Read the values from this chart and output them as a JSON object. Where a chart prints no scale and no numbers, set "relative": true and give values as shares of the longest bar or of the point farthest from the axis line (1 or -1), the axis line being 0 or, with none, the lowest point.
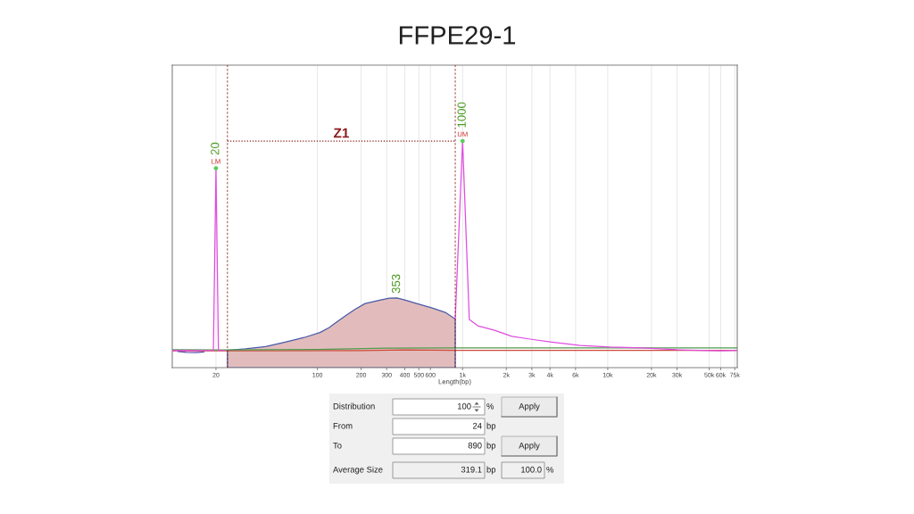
{
  "chart_data": {
    "type": "line",
    "title": "FFPE29-1",
    "xlabel": "Length(bp)",
    "relative": true,
    "log": "x",
    "xlim": [
      10,
      78000
    ],
    "xticks": [
      20,
      100,
      200,
      300,
      400,
      500,
      600,
      {
        "value": 1000,
        "label": "1k"
      },
      {
        "value": 2000,
        "label": "2k"
      },
      {
        "value": 3000,
        "label": "3k"
      },
      {
        "value": 4000,
        "label": "4k"
      },
      {
        "value": 6000,
        "label": "6k"
      },
      {
        "value": 10000,
        "label": "10k"
      },
      {
        "value": 20000,
        "label": "20k"
      },
      {
        "value": 30000,
        "label": "30k"
      },
      {
        "value": 50000,
        "label": "50k"
      },
      {
        "value": 60000,
        "label": "60k"
      },
      {
        "value": 75000,
        "label": "75k"
      }
    ],
    "grid": "x",
    "series": [
      {
        "type": "area",
        "color": "#e2bcbc",
        "x": [
          24,
          32,
          44,
          60,
          81,
          104,
          120,
          138,
          158,
          181,
          213,
          273,
          313,
          353,
          378,
          424,
          494,
          610,
          760,
          890
        ],
        "values": [
          0.076,
          0.083,
          0.093,
          0.113,
          0.133,
          0.155,
          0.176,
          0.205,
          0.231,
          0.257,
          0.283,
          0.299,
          0.307,
          0.308,
          0.303,
          0.294,
          0.281,
          0.264,
          0.244,
          0.215
        ]
      },
      {
        "type": "line",
        "color": "#d04a3a",
        "x": [
          10,
          20,
          200,
          400,
          1000,
          78000
        ],
        "values": [
          0.074,
          0.074,
          0.075,
          0.078,
          0.076,
          0.076
        ]
      },
      {
        "type": "line",
        "color": "#4f9a4f",
        "x": [
          10,
          20,
          100,
          300,
          1000,
          10000,
          78000
        ],
        "values": [
          0.079,
          0.078,
          0.08,
          0.086,
          0.087,
          0.087,
          0.087
        ]
      },
      {
        "type": "line",
        "color": "#e04ce0",
        "x": [
          10,
          12,
          15,
          19.2,
          20,
          20.8,
          23
        ],
        "values": [
          0.075,
          0.076,
          0.075,
          0.076,
          0.88,
          0.076,
          0.075
        ]
      },
      {
        "type": "line",
        "color": "#e04ce0",
        "x": [
          890,
          1000,
          1112,
          1271,
          1660,
          2180,
          2912,
          4000,
          6460,
          10370,
          17290,
          30000,
          60000,
          78000
        ],
        "values": [
          0.215,
          1.0,
          0.213,
          0.185,
          0.165,
          0.138,
          0.126,
          0.114,
          0.098,
          0.091,
          0.087,
          0.079,
          0.074,
          0.076
        ]
      },
      {
        "type": "line",
        "color": "#5a50a8",
        "x": [
          11,
          12.5,
          14.5,
          16.5
        ],
        "values": [
          0.071,
          0.067,
          0.066,
          0.069
        ]
      },
      {
        "type": "line",
        "name": "Z1",
        "color": "#8b1a1a",
        "line_style": "dotted",
        "x": [
          24,
          890
        ],
        "values": [
          1.0,
          1.0
        ]
      },
      {
        "type": "scatter",
        "color": "#5ccc5c",
        "marker": "circle",
        "x": [
          20,
          1000
        ],
        "values": [
          0.88,
          1.0
        ]
      }
    ],
    "ref_lines": [
      {
        "axis": "x",
        "value": 24,
        "color": "#8b1a1a",
        "line_style": "dashed"
      },
      {
        "axis": "x",
        "value": 890,
        "color": "#8b1a1a",
        "line_style": "dashed"
      }
    ],
    "annotations": [
      {
        "text": "20",
        "x": 20,
        "y": 0.88
      },
      {
        "text": "LM",
        "x": 20,
        "y": 0.88
      },
      {
        "text": "1000",
        "x": 1000,
        "y": 1.0
      },
      {
        "text": "UM",
        "x": 1000,
        "y": 1.0
      },
      {
        "text": "353",
        "x": 353,
        "y": 0.308
      },
      "Distribution",
      "100",
      "%",
      "Apply",
      "From",
      "24",
      "bp",
      "To",
      "890",
      "bp",
      "Apply",
      "Average Size",
      "319.1",
      "bp",
      "100.0",
      "%"
    ]
  }
}
